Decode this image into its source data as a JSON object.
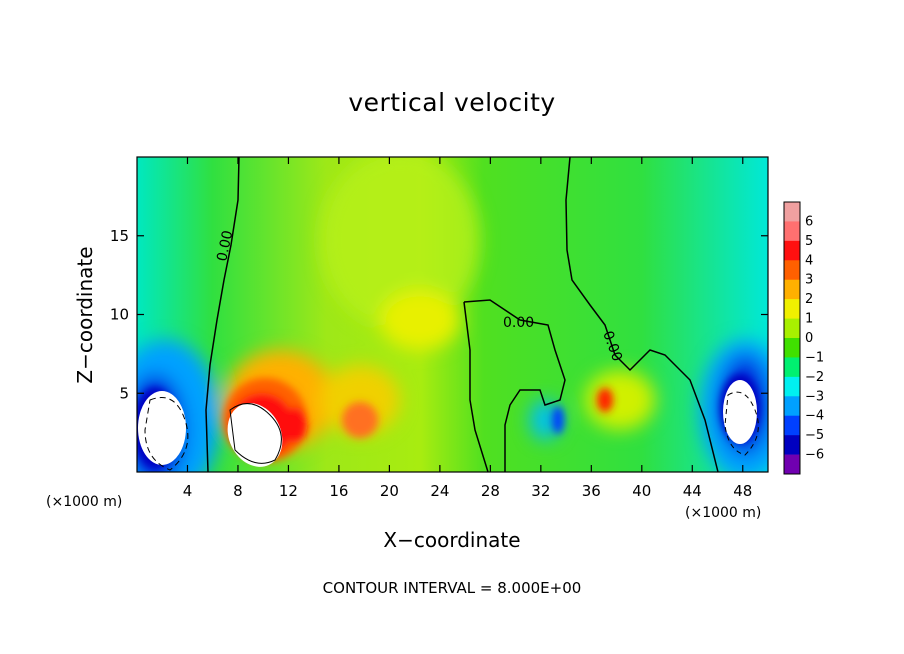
{
  "chart_data": {
    "type": "heatmap",
    "title": "vertical velocity",
    "xlabel": "X−coordinate",
    "ylabel": "Z−coordinate",
    "x_unit_left": "(×1000 m)",
    "x_unit_right": "(×1000 m)",
    "x_ticks": [
      4,
      8,
      12,
      16,
      20,
      24,
      28,
      32,
      36,
      40,
      44,
      48
    ],
    "y_ticks": [
      5,
      10,
      15
    ],
    "xlim": [
      0,
      50
    ],
    "ylim": [
      0,
      20
    ],
    "footer": "CONTOUR INTERVAL = 8.000E+00",
    "contour_labels": [
      "0.00",
      "0.00",
      "0.00"
    ],
    "colorbar": {
      "ticks": [
        "6",
        "5",
        "4",
        "3",
        "2",
        "1",
        "0",
        "−1",
        "−2",
        "−3",
        "−4",
        "−5",
        "−6"
      ],
      "colors": [
        "#f0a0a0",
        "#ff7070",
        "#ff1010",
        "#ff6000",
        "#ffb000",
        "#f0f000",
        "#a8f000",
        "#40e000",
        "#00f070",
        "#00f0f0",
        "#00a0ff",
        "#0040ff",
        "#0000c0",
        "#7000b0"
      ]
    },
    "features": [
      {
        "name": "updraft-core",
        "x": 9.5,
        "z": 3.0,
        "value": 6
      },
      {
        "name": "downdraft-core-left",
        "x": 2.0,
        "z": 2.5,
        "value": -6
      },
      {
        "name": "downdraft-core-right",
        "x": 47.5,
        "z": 3.5,
        "value": -6
      },
      {
        "name": "weak-updraft",
        "x": 22.5,
        "z": 10.0,
        "value": 2
      }
    ]
  }
}
